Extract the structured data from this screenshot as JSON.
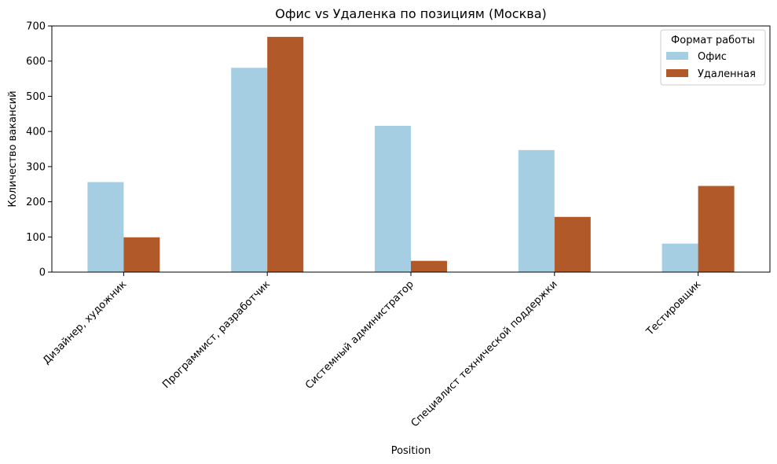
{
  "chart_data": {
    "type": "bar",
    "title": "Офис vs Удаленка по позициям (Москва)",
    "xlabel": "Position",
    "ylabel": "Количество вакансий",
    "categories": [
      "Дизайнер, художник",
      "Программист, разработчик",
      "Системный администратор",
      "Специалист технической поддержки",
      "Тестировщик"
    ],
    "series": [
      {
        "name": "Офис",
        "color": "#a6cee3",
        "values": [
          256,
          581,
          416,
          347,
          81
        ]
      },
      {
        "name": "Удаленная",
        "color": "#b15928",
        "values": [
          99,
          669,
          32,
          157,
          245
        ]
      }
    ],
    "ylim": [
      0,
      700
    ],
    "yticks": [
      0,
      100,
      200,
      300,
      400,
      500,
      600,
      700
    ],
    "grid": false,
    "legend": {
      "title": "Формат работы",
      "placement": "top-right"
    }
  }
}
